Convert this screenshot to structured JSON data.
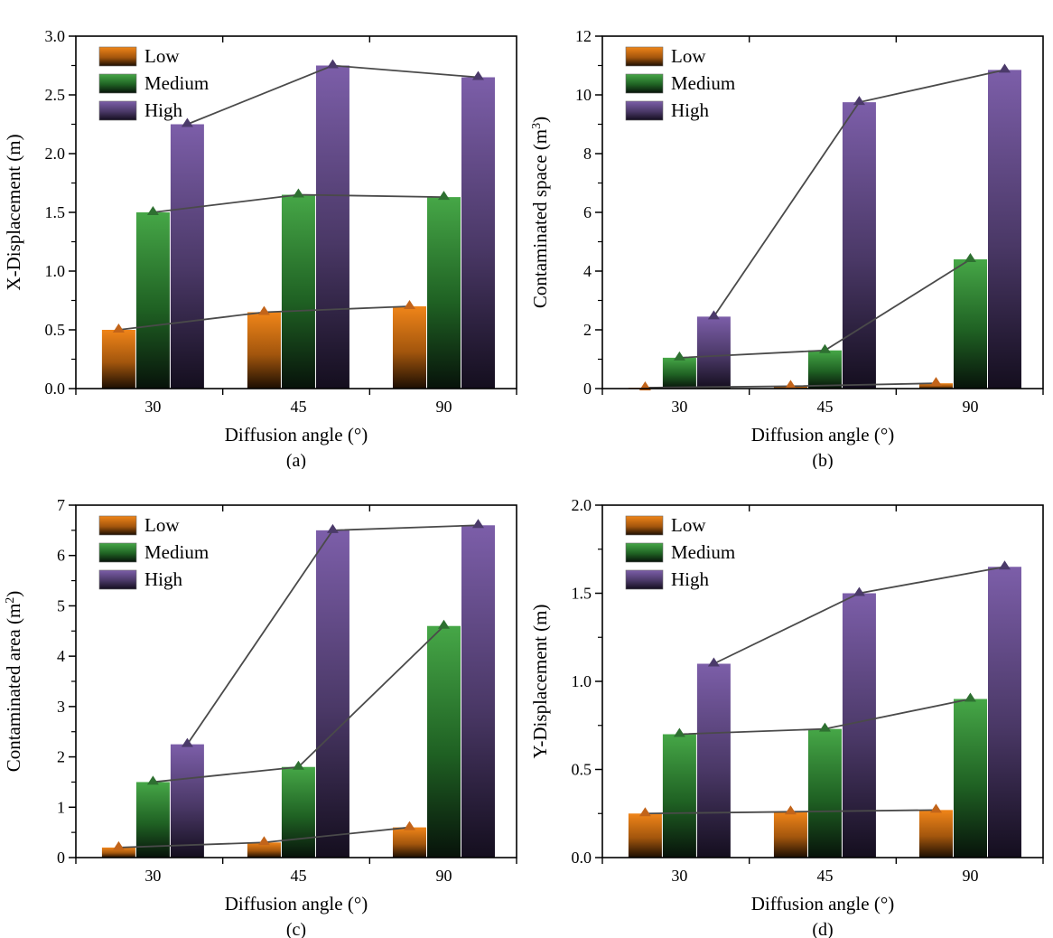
{
  "figure": {
    "background": "#ffffff",
    "x_axis_title": "Diffusion angle (°)",
    "legend_labels": [
      "Low",
      "Medium",
      "High"
    ]
  },
  "colors": {
    "axis": "#000000",
    "line": "#4a4a4a",
    "series": [
      {
        "name": "Low",
        "top": "#f08519",
        "mid": "#a3560d",
        "bottom": "#1c0e02",
        "marker": "#c2641a"
      },
      {
        "name": "Medium",
        "top": "#46a747",
        "mid": "#1f6123",
        "bottom": "#07120a",
        "marker": "#2e7031"
      },
      {
        "name": "High",
        "top": "#7c5ea9",
        "mid": "#4a3866",
        "bottom": "#140e1e",
        "marker": "#4b3a6a"
      }
    ]
  },
  "chart_data": [
    {
      "id": "a",
      "type": "bar",
      "panel_label": "(a)",
      "xlabel": "Diffusion angle (°)",
      "ylabel": "X-Displacement (m)",
      "ylabel_parts": [
        {
          "t": "X-Displacement (m)"
        }
      ],
      "categories": [
        "30",
        "45",
        "90"
      ],
      "series": [
        {
          "name": "Low",
          "values": [
            0.5,
            0.65,
            0.7
          ]
        },
        {
          "name": "Medium",
          "values": [
            1.5,
            1.65,
            1.63
          ]
        },
        {
          "name": "High",
          "values": [
            2.25,
            2.75,
            2.65
          ]
        }
      ],
      "ylim": [
        0,
        3.0
      ],
      "ytick_step": 0.5,
      "ytick_decimals": 1,
      "legend_position": "top-left",
      "grid": false
    },
    {
      "id": "b",
      "type": "bar",
      "panel_label": "(b)",
      "xlabel": "Diffusion angle (°)",
      "ylabel": "Contaminated space (m³)",
      "ylabel_parts": [
        {
          "t": "Contaminated space (m"
        },
        {
          "t": "3",
          "sup": true
        },
        {
          "t": ")"
        }
      ],
      "categories": [
        "30",
        "45",
        "90"
      ],
      "series": [
        {
          "name": "Low",
          "values": [
            0.03,
            0.08,
            0.18
          ]
        },
        {
          "name": "Medium",
          "values": [
            1.05,
            1.3,
            4.4
          ]
        },
        {
          "name": "High",
          "values": [
            2.45,
            9.75,
            10.85
          ]
        }
      ],
      "ylim": [
        0,
        12
      ],
      "ytick_step": 2,
      "ytick_decimals": 0,
      "legend_position": "top-left",
      "grid": false
    },
    {
      "id": "c",
      "type": "bar",
      "panel_label": "(c)",
      "xlabel": "Diffusion angle (°)",
      "ylabel": "Contaminated area (m²)",
      "ylabel_parts": [
        {
          "t": "Contaminated area (m"
        },
        {
          "t": "2",
          "sup": true
        },
        {
          "t": ")"
        }
      ],
      "categories": [
        "30",
        "45",
        "90"
      ],
      "series": [
        {
          "name": "Low",
          "values": [
            0.2,
            0.3,
            0.6
          ]
        },
        {
          "name": "Medium",
          "values": [
            1.5,
            1.8,
            4.6
          ]
        },
        {
          "name": "High",
          "values": [
            2.25,
            6.5,
            6.6
          ]
        }
      ],
      "ylim": [
        0,
        7
      ],
      "ytick_step": 1,
      "ytick_decimals": 0,
      "legend_position": "top-left",
      "grid": false
    },
    {
      "id": "d",
      "type": "bar",
      "panel_label": "(d)",
      "xlabel": "Diffusion angle (°)",
      "ylabel": "Y-Displacement (m)",
      "ylabel_parts": [
        {
          "t": "Y-Displacement (m)"
        }
      ],
      "categories": [
        "30",
        "45",
        "90"
      ],
      "series": [
        {
          "name": "Low",
          "values": [
            0.25,
            0.26,
            0.27
          ]
        },
        {
          "name": "Medium",
          "values": [
            0.7,
            0.73,
            0.9
          ]
        },
        {
          "name": "High",
          "values": [
            1.1,
            1.5,
            1.65
          ]
        }
      ],
      "ylim": [
        0,
        2.0
      ],
      "ytick_step": 0.5,
      "ytick_decimals": 1,
      "legend_position": "top-left",
      "grid": false
    }
  ]
}
